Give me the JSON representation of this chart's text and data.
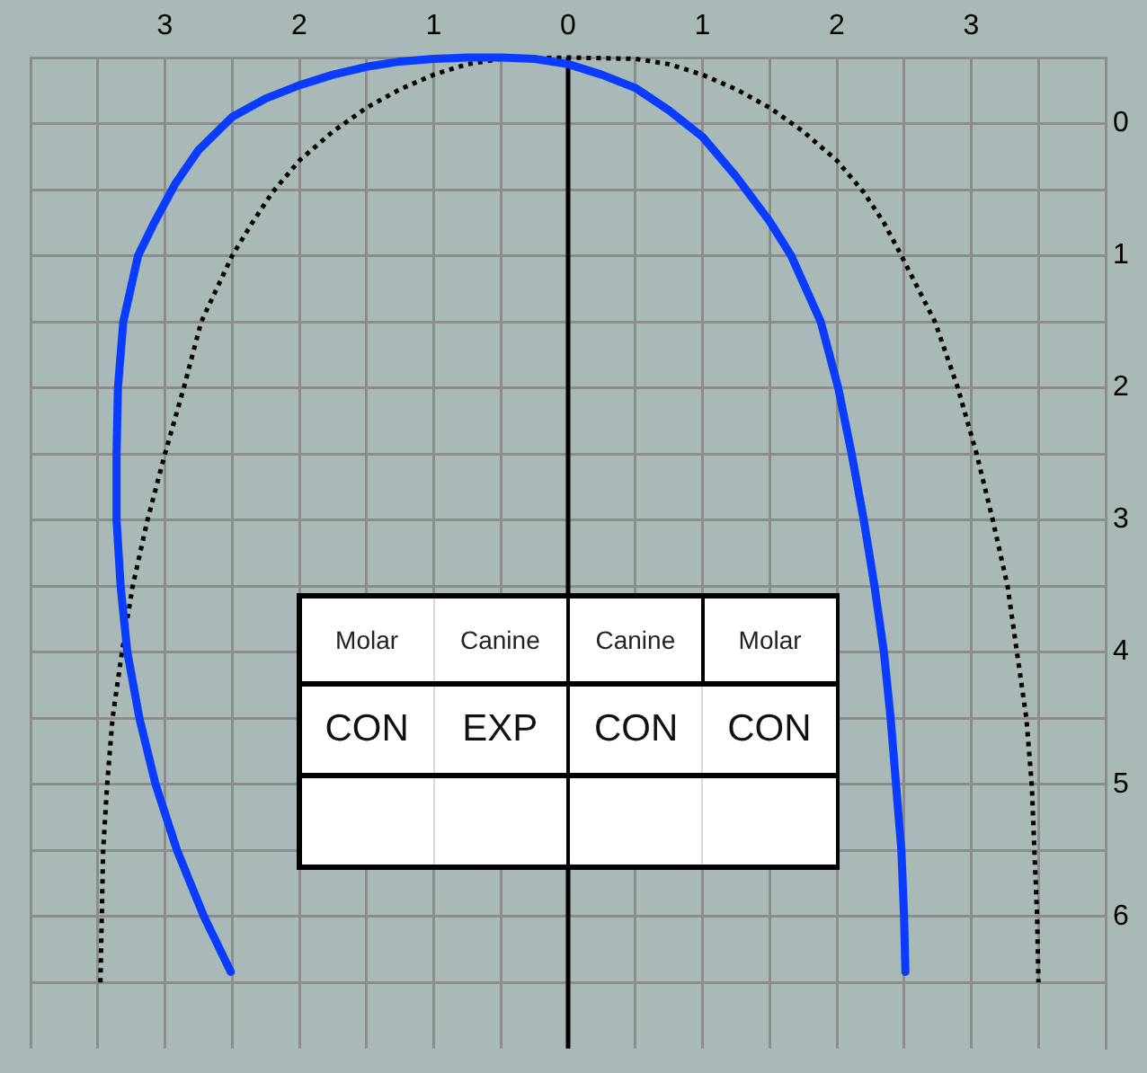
{
  "chart_data": {
    "type": "line",
    "series": [
      {
        "color": "#0a3cff",
        "line_style": "solid",
        "x": [
          -2.51,
          -2.71,
          -2.91,
          -3.07,
          -3.19,
          -3.28,
          -3.33,
          -3.36,
          -3.36,
          -3.35,
          -3.31,
          -3.2,
          -3.08,
          -2.92,
          -2.75,
          -2.5,
          -2.25,
          -2.0,
          -1.75,
          -1.5,
          -1.25,
          -1.0,
          -0.75,
          -0.5,
          -0.25,
          0,
          0.25,
          0.5,
          0.75,
          1.0,
          1.25,
          1.5,
          1.66,
          1.88,
          2.01,
          2.11,
          2.2,
          2.28,
          2.35,
          2.4,
          2.44,
          2.48,
          2.5,
          2.51
        ],
        "values": [
          6.42,
          6.0,
          5.5,
          5.0,
          4.5,
          4.0,
          3.5,
          3.0,
          2.5,
          2.0,
          1.5,
          1.0,
          0.75,
          0.45,
          0.2,
          -0.05,
          -0.19,
          -0.29,
          -0.37,
          -0.43,
          -0.47,
          -0.49,
          -0.5,
          -0.5,
          -0.49,
          -0.45,
          -0.37,
          -0.27,
          -0.1,
          0.1,
          0.4,
          0.74,
          1.0,
          1.5,
          2.0,
          2.5,
          3.0,
          3.5,
          4.0,
          4.5,
          5.0,
          5.5,
          6.0,
          6.42
        ]
      },
      {
        "color": "#000000",
        "line_style": "dotted",
        "x": [
          -3.48,
          -3.47,
          -3.46,
          -3.43,
          -3.39,
          -3.32,
          -3.24,
          -3.13,
          -3.0,
          -2.86,
          -2.73,
          -2.5,
          -2.35,
          -2.2,
          -2.0,
          -1.75,
          -1.5,
          -1.25,
          -1.0,
          -0.75,
          -0.5,
          0,
          0.5,
          0.75,
          1.0,
          1.25,
          1.5,
          1.75,
          2.0,
          2.2,
          2.35,
          2.48,
          2.73,
          2.9,
          3.04,
          3.16,
          3.27,
          3.34,
          3.41,
          3.45,
          3.47,
          3.49,
          3.5
        ],
        "values": [
          6.5,
          6.0,
          5.5,
          5.0,
          4.5,
          4.0,
          3.5,
          3.0,
          2.5,
          2.0,
          1.5,
          1.0,
          0.75,
          0.52,
          0.28,
          0.06,
          -0.12,
          -0.26,
          -0.37,
          -0.45,
          -0.49,
          -0.5,
          -0.49,
          -0.45,
          -0.37,
          -0.26,
          -0.12,
          0.06,
          0.28,
          0.52,
          0.75,
          1.0,
          1.5,
          2.0,
          2.5,
          3.0,
          3.5,
          4.0,
          4.5,
          5.0,
          5.5,
          6.0,
          6.5
        ]
      }
    ],
    "xlim": [
      -4,
      4
    ],
    "xticks": [
      {
        "value": -4,
        "label": null
      },
      {
        "value": -3.5,
        "label": null
      },
      {
        "value": -3,
        "label": "3"
      },
      {
        "value": -2.5,
        "label": null
      },
      {
        "value": -2,
        "label": "2"
      },
      {
        "value": -1.5,
        "label": null
      },
      {
        "value": -1,
        "label": "1"
      },
      {
        "value": -0.5,
        "label": null
      },
      0,
      {
        "value": 0.5,
        "label": null
      },
      1,
      {
        "value": 1.5,
        "label": null
      },
      2,
      {
        "value": 2.5,
        "label": null
      },
      3,
      {
        "value": 3.5,
        "label": null
      },
      {
        "value": 4,
        "label": null
      }
    ],
    "ylim": [
      7,
      -0.5
    ],
    "yticks": [
      {
        "value": -0.5,
        "label": null
      },
      0,
      {
        "value": 0.5,
        "label": null
      },
      1,
      {
        "value": 1.5,
        "label": null
      },
      2,
      {
        "value": 2.5,
        "label": null
      },
      3,
      {
        "value": 3.5,
        "label": null
      },
      4,
      {
        "value": 4.5,
        "label": null
      },
      5,
      {
        "value": 5.5,
        "label": null
      },
      6,
      {
        "value": 6.5,
        "label": null
      }
    ],
    "grid": true,
    "marker": "none",
    "ref_lines": [
      {
        "axis": "x",
        "value": 0,
        "color": "#000000"
      }
    ],
    "annotations": [
      "Molar",
      "Canine",
      "Canine",
      "Molar",
      "CON",
      "EXP",
      "CON",
      "CON"
    ]
  }
}
